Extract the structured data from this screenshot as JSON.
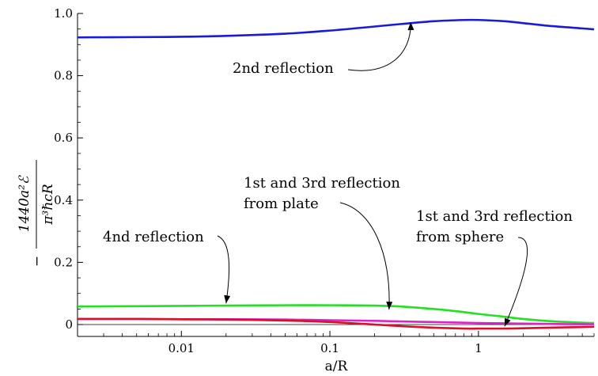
{
  "chart_data": {
    "type": "line",
    "xlabel": "a/R",
    "ylabel": {
      "numerator": "1440a²ℰ",
      "denominator": "π³ℏcR",
      "sign": "−"
    },
    "xscale": "log",
    "xlim": [
      0.002,
      6
    ],
    "ylim": [
      -0.05,
      1.0
    ],
    "x_ticks": [
      {
        "value": 0.01,
        "label": "0.01"
      },
      {
        "value": 0.1,
        "label": "0.1"
      },
      {
        "value": 1,
        "label": "1"
      }
    ],
    "y_ticks": [
      {
        "value": 0,
        "label": "0"
      },
      {
        "value": 0.2,
        "label": "0.2"
      },
      {
        "value": 0.4,
        "label": "0.4"
      },
      {
        "value": 0.6,
        "label": "0.6"
      },
      {
        "value": 0.8,
        "label": "0.8"
      },
      {
        "value": 1.0,
        "label": "1.0"
      }
    ],
    "grid": false,
    "zero_line": true,
    "series": [
      {
        "key": "second",
        "color": "#1a1adb",
        "x": [
          0.002,
          0.005,
          0.01,
          0.02,
          0.05,
          0.1,
          0.2,
          0.3,
          0.5,
          0.8,
          1,
          1.5,
          2,
          3,
          5,
          6
        ],
        "y": [
          0.923,
          0.924,
          0.925,
          0.928,
          0.935,
          0.945,
          0.958,
          0.966,
          0.975,
          0.979,
          0.979,
          0.975,
          0.969,
          0.96,
          0.952,
          0.949
        ]
      },
      {
        "key": "fourth",
        "color": "#22e022",
        "x": [
          0.002,
          0.005,
          0.01,
          0.02,
          0.05,
          0.1,
          0.2,
          0.3,
          0.5,
          0.8,
          1,
          1.5,
          2,
          3,
          5,
          6
        ],
        "y": [
          0.058,
          0.059,
          0.06,
          0.061,
          0.062,
          0.062,
          0.061,
          0.058,
          0.05,
          0.04,
          0.034,
          0.025,
          0.018,
          0.011,
          0.006,
          0.005
        ]
      },
      {
        "key": "plate",
        "color": "#e020c8",
        "x": [
          0.002,
          0.005,
          0.01,
          0.02,
          0.05,
          0.1,
          0.2,
          0.3,
          0.5,
          0.8,
          1,
          1.5,
          2,
          3,
          5,
          6
        ],
        "y": [
          0.018,
          0.018,
          0.017,
          0.017,
          0.016,
          0.014,
          0.012,
          0.01,
          0.008,
          0.006,
          0.005,
          0.004,
          0.003,
          0.002,
          0.001,
          0.001
        ]
      },
      {
        "key": "sphere",
        "color": "#d8102a",
        "x": [
          0.002,
          0.005,
          0.01,
          0.02,
          0.05,
          0.1,
          0.2,
          0.3,
          0.5,
          0.8,
          1,
          1.5,
          2,
          3,
          5,
          6
        ],
        "y": [
          0.018,
          0.018,
          0.017,
          0.016,
          0.013,
          0.008,
          0.0,
          -0.005,
          -0.01,
          -0.013,
          -0.013,
          -0.013,
          -0.012,
          -0.01,
          -0.008,
          -0.007
        ]
      }
    ],
    "annotations": [
      {
        "lines": [
          "2nd reflection"
        ],
        "series": "second",
        "target_x": 0.35,
        "target_y": 0.972
      },
      {
        "lines": [
          "1st and 3rd reflection",
          "from plate"
        ],
        "series": "plate",
        "target_x": 0.25,
        "target_y": 0.048
      },
      {
        "lines": [
          "1st and 3rd reflection",
          "from sphere"
        ],
        "series": "sphere",
        "target_x": 1.5,
        "target_y": -0.006
      },
      {
        "lines": [
          "4nd reflection"
        ],
        "series": "fourth",
        "target_x": 0.02,
        "target_y": 0.068
      }
    ]
  }
}
